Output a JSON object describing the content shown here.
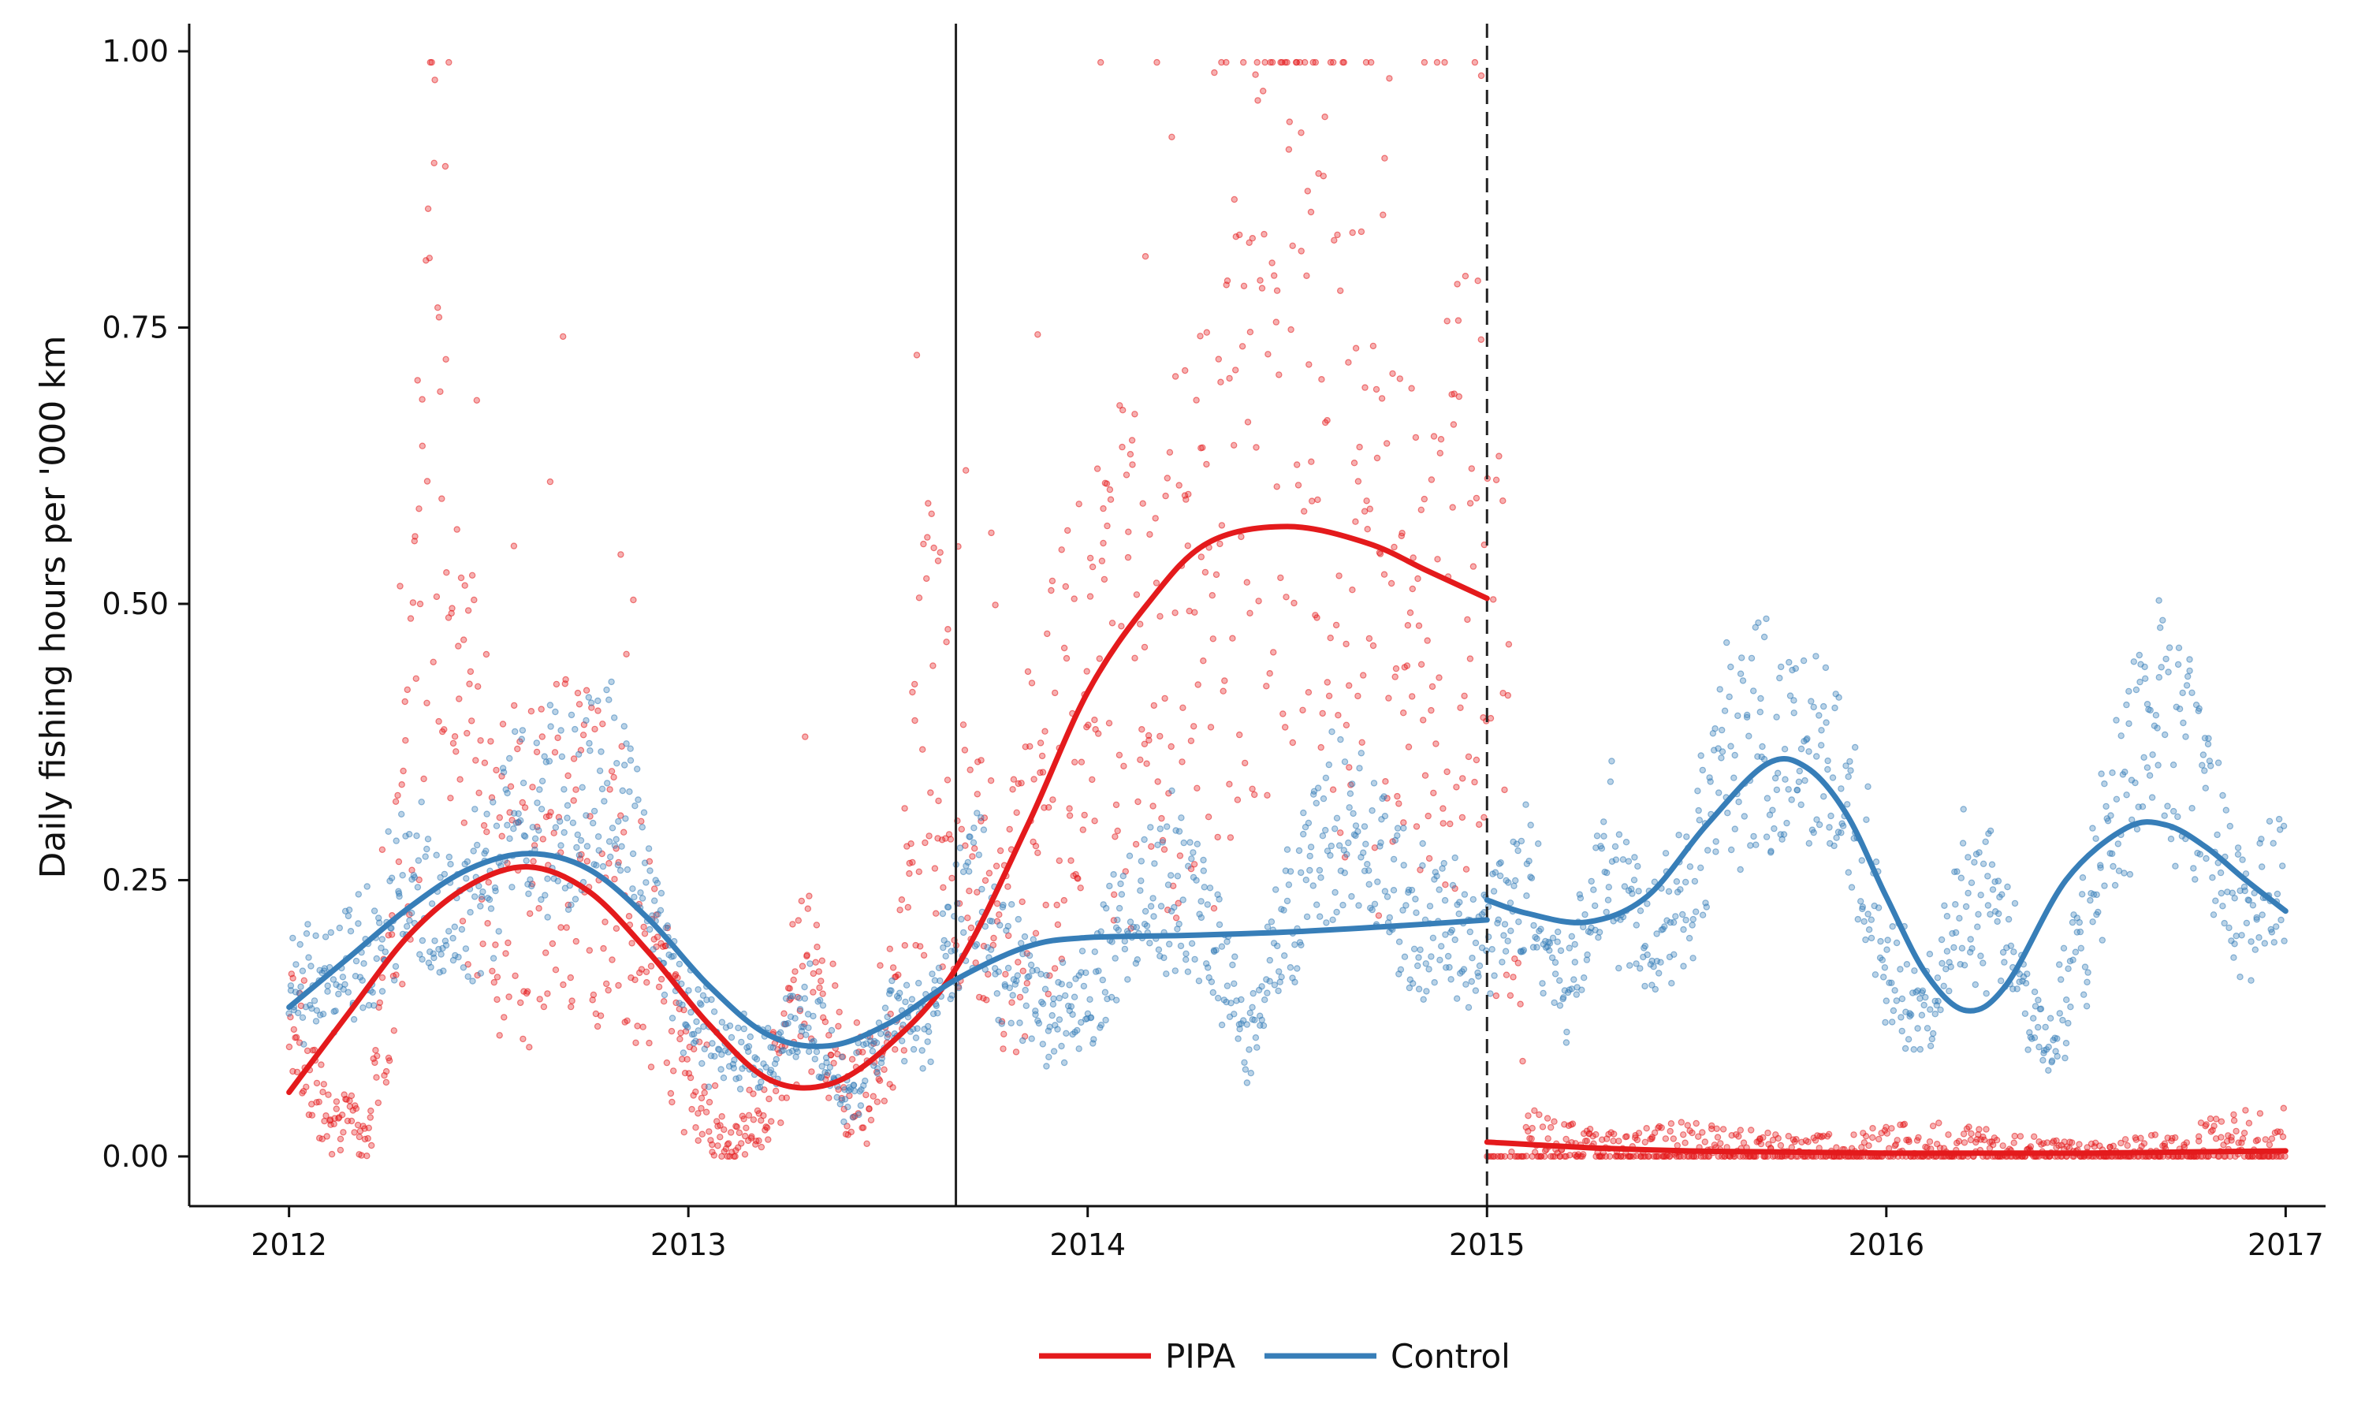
{
  "chart_data": {
    "type": "scatter",
    "title": "",
    "xlabel": "",
    "ylabel": "Daily fishing hours per '000 km",
    "xlim": [
      2011.75,
      2017.1
    ],
    "ylim": [
      -0.045,
      1.025
    ],
    "x_ticks": [
      2012,
      2013,
      2014,
      2015,
      2016,
      2017
    ],
    "y_ticks": [
      0.0,
      0.25,
      0.5,
      0.75,
      1.0
    ],
    "y_tick_labels": [
      "0.00",
      "0.25",
      "0.50",
      "0.75",
      "1.00"
    ],
    "grid": false,
    "legend_position": "bottom",
    "vertical_lines": [
      {
        "x": 2013.67,
        "style": "solid"
      },
      {
        "x": 2015.0,
        "style": "dashed"
      }
    ],
    "series": [
      {
        "name": "PIPA",
        "color": "#e41a1c",
        "smooth": [
          {
            "segment": "pre-2015",
            "x": [
              2012.0,
              2012.15,
              2012.3,
              2012.45,
              2012.6,
              2012.75,
              2012.9,
              2013.05,
              2013.2,
              2013.35,
              2013.5,
              2013.67,
              2013.85,
              2014.0,
              2014.15,
              2014.3,
              2014.5,
              2014.7,
              2014.85,
              2015.0
            ],
            "y": [
              0.058,
              0.13,
              0.2,
              0.245,
              0.262,
              0.24,
              0.185,
              0.12,
              0.07,
              0.065,
              0.1,
              0.17,
              0.3,
              0.42,
              0.5,
              0.555,
              0.57,
              0.555,
              0.53,
              0.505
            ]
          },
          {
            "segment": "post-2015",
            "x": [
              2015.0,
              2015.25,
              2015.5,
              2015.75,
              2016.0,
              2016.25,
              2016.5,
              2016.75,
              2017.0
            ],
            "y": [
              0.013,
              0.008,
              0.005,
              0.004,
              0.003,
              0.003,
              0.003,
              0.004,
              0.005
            ]
          }
        ],
        "points_summary": {
          "x": [
            2012.0,
            2012.1,
            2012.2,
            2012.3,
            2012.35,
            2012.4,
            2012.5,
            2012.6,
            2012.7,
            2012.8,
            2012.9,
            2013.0,
            2013.1,
            2013.2,
            2013.3,
            2013.4,
            2013.5,
            2013.6,
            2013.7,
            2013.8,
            2013.9,
            2014.0,
            2014.1,
            2014.2,
            2014.3,
            2014.4,
            2014.5,
            2014.6,
            2014.7,
            2014.8,
            2014.9,
            2014.99,
            2015.1,
            2015.3,
            2015.5,
            2015.7,
            2015.9,
            2016.1,
            2016.3,
            2016.5,
            2016.7,
            2016.9
          ],
          "y": [
            0.12,
            0.03,
            0.02,
            0.3,
            0.8,
            0.4,
            0.3,
            0.25,
            0.3,
            0.25,
            0.18,
            0.08,
            0.0,
            0.05,
            0.18,
            0.05,
            0.08,
            0.4,
            0.25,
            0.2,
            0.35,
            0.4,
            0.45,
            0.45,
            0.5,
            0.6,
            0.8,
            0.65,
            0.5,
            0.45,
            0.55,
            0.5,
            0.02,
            0.01,
            0.015,
            0.01,
            0.01,
            0.015,
            0.01,
            0.005,
            0.01,
            0.02
          ]
        }
      },
      {
        "name": "Control",
        "color": "#377eb8",
        "smooth": [
          {
            "segment": "pre-2015",
            "x": [
              2012.0,
              2012.15,
              2012.3,
              2012.45,
              2012.6,
              2012.75,
              2012.9,
              2013.05,
              2013.2,
              2013.35,
              2013.5,
              2013.67,
              2013.85,
              2014.0,
              2014.25,
              2014.5,
              2014.75,
              2015.0
            ],
            "y": [
              0.135,
              0.18,
              0.225,
              0.26,
              0.274,
              0.26,
              0.215,
              0.155,
              0.11,
              0.1,
              0.12,
              0.16,
              0.19,
              0.198,
              0.2,
              0.203,
              0.208,
              0.214
            ]
          },
          {
            "segment": "post-2015",
            "x": [
              2015.0,
              2015.1,
              2015.25,
              2015.4,
              2015.55,
              2015.7,
              2015.8,
              2015.9,
              2016.0,
              2016.1,
              2016.2,
              2016.3,
              2016.45,
              2016.6,
              2016.7,
              2016.8,
              2016.9,
              2017.0
            ],
            "y": [
              0.232,
              0.22,
              0.212,
              0.235,
              0.3,
              0.355,
              0.352,
              0.31,
              0.235,
              0.165,
              0.132,
              0.155,
              0.25,
              0.297,
              0.3,
              0.28,
              0.25,
              0.222
            ]
          }
        ],
        "points_summary": {
          "x": [
            2012.0,
            2012.1,
            2012.2,
            2012.3,
            2012.4,
            2012.5,
            2012.6,
            2012.7,
            2012.8,
            2012.9,
            2013.0,
            2013.1,
            2013.2,
            2013.3,
            2013.4,
            2013.5,
            2013.6,
            2013.7,
            2013.8,
            2013.9,
            2014.0,
            2014.1,
            2014.2,
            2014.3,
            2014.4,
            2014.5,
            2014.6,
            2014.7,
            2014.8,
            2014.9,
            2015.0,
            2015.1,
            2015.2,
            2015.3,
            2015.4,
            2015.5,
            2015.6,
            2015.7,
            2015.8,
            2015.9,
            2016.0,
            2016.1,
            2016.2,
            2016.3,
            2016.4,
            2016.5,
            2016.6,
            2016.7,
            2016.8,
            2016.9,
            2017.0
          ],
          "y": [
            0.16,
            0.15,
            0.2,
            0.25,
            0.22,
            0.26,
            0.32,
            0.3,
            0.36,
            0.25,
            0.12,
            0.1,
            0.08,
            0.13,
            0.05,
            0.12,
            0.12,
            0.25,
            0.18,
            0.13,
            0.14,
            0.22,
            0.25,
            0.22,
            0.1,
            0.22,
            0.3,
            0.28,
            0.22,
            0.2,
            0.2,
            0.25,
            0.14,
            0.28,
            0.2,
            0.25,
            0.36,
            0.38,
            0.35,
            0.35,
            0.17,
            0.12,
            0.25,
            0.2,
            0.09,
            0.2,
            0.36,
            0.4,
            0.32,
            0.22,
            0.23
          ]
        }
      }
    ]
  }
}
